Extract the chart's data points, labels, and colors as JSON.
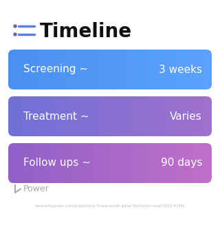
{
  "title": "Timeline",
  "title_fontsize": 20,
  "title_color": "#111111",
  "title_fontweight": "bold",
  "icon_dot_color": "#7B5EA7",
  "icon_line_color": "#5B7FE8",
  "rows": [
    {
      "label": "Screening ~",
      "value": "3 weeks",
      "color_left": "#4A90F0",
      "color_right": "#5BA3FF"
    },
    {
      "label": "Treatment ~",
      "value": "Varies",
      "color_left": "#7070D8",
      "color_right": "#A070CC"
    },
    {
      "label": "Follow ups ~",
      "value": "90 days",
      "color_left": "#9060C8",
      "color_right": "#C070C8"
    }
  ],
  "watermark_text": "Power",
  "watermark_color": "#AAAAAA",
  "url_text": "www.withpower.com/trial/phase-3-new-onset-atrial-fibrillation-noaf-2022-434fb",
  "url_color": "#BBBBBB",
  "background_color": "#FFFFFF",
  "text_fontsize": 11,
  "text_color": "#FFFFFF"
}
